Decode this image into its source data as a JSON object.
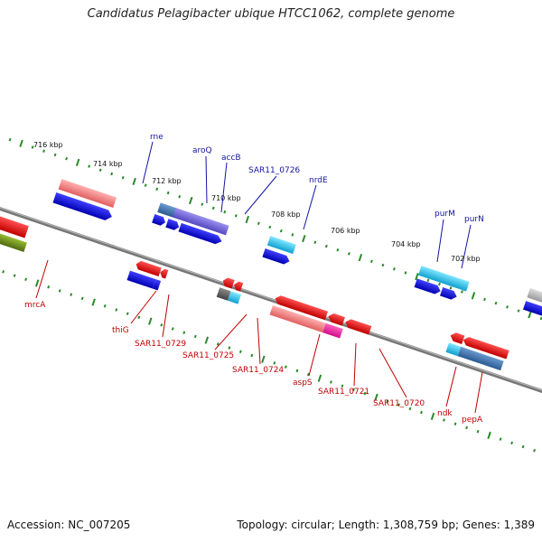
{
  "title": "Candidatus Pelagibacter ubique HTCC1062, complete genome",
  "footer": {
    "accession": "Accession: NC_007205",
    "summary": "Topology: circular; Length: 1,308,759 bp; Genes: 1,389"
  },
  "scale": {
    "ticks": [
      "716 kbp",
      "714 kbp",
      "712 kbp",
      "710 kbp",
      "708 kbp",
      "706 kbp",
      "704 kbp",
      "702 kbp"
    ]
  },
  "forward_labels": [
    "rne",
    "aroQ",
    "accB",
    "SAR11_0726",
    "nrdE",
    "purM",
    "purN"
  ],
  "reverse_labels": [
    "mrcA",
    "thiG",
    "SAR11_0729",
    "SAR11_0725",
    "SAR11_0724",
    "aspS",
    "SAR11_0721",
    "SAR11_0720",
    "ndk",
    "pepA"
  ],
  "colors": {
    "forward_cds": "#1010e0",
    "reverse_cds": "#e01010",
    "backbone": "#888888",
    "scale_dots": "#2a8a2a",
    "label_forward": "#1414a0",
    "label_reverse": "#c00000"
  }
}
